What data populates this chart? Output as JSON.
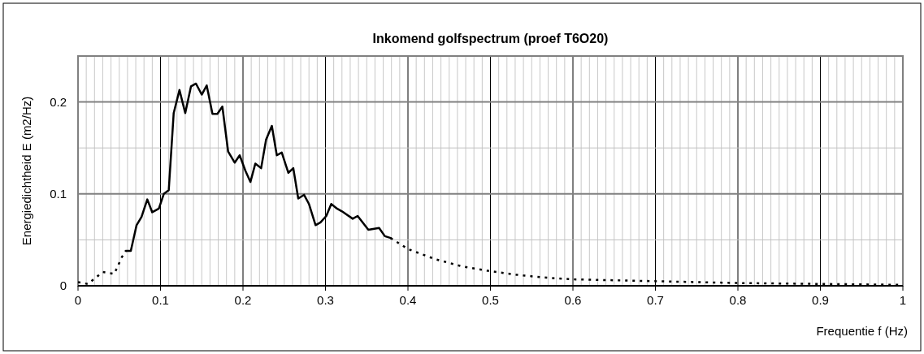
{
  "chart_data": {
    "type": "line",
    "title": "Inkomend golfspectrum (proef T6O20)",
    "xlabel": "Frequentie f (Hz)",
    "ylabel": "Energiedichtheid E (m2/Hz)",
    "xlim": [
      0,
      1
    ],
    "ylim": [
      0,
      0.25
    ],
    "xticks": [
      0,
      {
        "value": 0.01,
        "label": null
      },
      {
        "value": 0.02,
        "label": null
      },
      {
        "value": 0.03,
        "label": null
      },
      {
        "value": 0.04,
        "label": null
      },
      {
        "value": 0.05,
        "label": null
      },
      {
        "value": 0.06,
        "label": null
      },
      {
        "value": 0.07,
        "label": null
      },
      {
        "value": 0.08,
        "label": null
      },
      {
        "value": 0.09,
        "label": null
      },
      0.1,
      {
        "value": 0.11,
        "label": null
      },
      {
        "value": 0.12,
        "label": null
      },
      {
        "value": 0.13,
        "label": null
      },
      {
        "value": 0.14,
        "label": null
      },
      {
        "value": 0.15,
        "label": null
      },
      {
        "value": 0.16,
        "label": null
      },
      {
        "value": 0.17,
        "label": null
      },
      {
        "value": 0.18,
        "label": null
      },
      {
        "value": 0.19,
        "label": null
      },
      0.2,
      {
        "value": 0.21,
        "label": null
      },
      {
        "value": 0.22,
        "label": null
      },
      {
        "value": 0.23,
        "label": null
      },
      {
        "value": 0.24,
        "label": null
      },
      {
        "value": 0.25,
        "label": null
      },
      {
        "value": 0.26,
        "label": null
      },
      {
        "value": 0.27,
        "label": null
      },
      {
        "value": 0.28,
        "label": null
      },
      {
        "value": 0.29,
        "label": null
      },
      0.3,
      {
        "value": 0.31,
        "label": null
      },
      {
        "value": 0.32,
        "label": null
      },
      {
        "value": 0.33,
        "label": null
      },
      {
        "value": 0.34,
        "label": null
      },
      {
        "value": 0.35,
        "label": null
      },
      {
        "value": 0.36,
        "label": null
      },
      {
        "value": 0.37,
        "label": null
      },
      {
        "value": 0.38,
        "label": null
      },
      {
        "value": 0.39,
        "label": null
      },
      0.4,
      {
        "value": 0.41,
        "label": null
      },
      {
        "value": 0.42,
        "label": null
      },
      {
        "value": 0.43,
        "label": null
      },
      {
        "value": 0.44,
        "label": null
      },
      {
        "value": 0.45,
        "label": null
      },
      {
        "value": 0.46,
        "label": null
      },
      {
        "value": 0.47,
        "label": null
      },
      {
        "value": 0.48,
        "label": null
      },
      {
        "value": 0.49,
        "label": null
      },
      0.5,
      {
        "value": 0.51,
        "label": null
      },
      {
        "value": 0.52,
        "label": null
      },
      {
        "value": 0.53,
        "label": null
      },
      {
        "value": 0.54,
        "label": null
      },
      {
        "value": 0.55,
        "label": null
      },
      {
        "value": 0.56,
        "label": null
      },
      {
        "value": 0.57,
        "label": null
      },
      {
        "value": 0.58,
        "label": null
      },
      {
        "value": 0.59,
        "label": null
      },
      0.6,
      {
        "value": 0.61,
        "label": null
      },
      {
        "value": 0.62,
        "label": null
      },
      {
        "value": 0.63,
        "label": null
      },
      {
        "value": 0.64,
        "label": null
      },
      {
        "value": 0.65,
        "label": null
      },
      {
        "value": 0.66,
        "label": null
      },
      {
        "value": 0.67,
        "label": null
      },
      {
        "value": 0.68,
        "label": null
      },
      {
        "value": 0.69,
        "label": null
      },
      0.7,
      {
        "value": 0.71,
        "label": null
      },
      {
        "value": 0.72,
        "label": null
      },
      {
        "value": 0.73,
        "label": null
      },
      {
        "value": 0.74,
        "label": null
      },
      {
        "value": 0.75,
        "label": null
      },
      {
        "value": 0.76,
        "label": null
      },
      {
        "value": 0.77,
        "label": null
      },
      {
        "value": 0.78,
        "label": null
      },
      {
        "value": 0.79,
        "label": null
      },
      0.8,
      {
        "value": 0.81,
        "label": null
      },
      {
        "value": 0.82,
        "label": null
      },
      {
        "value": 0.83,
        "label": null
      },
      {
        "value": 0.84,
        "label": null
      },
      {
        "value": 0.85,
        "label": null
      },
      {
        "value": 0.86,
        "label": null
      },
      {
        "value": 0.87,
        "label": null
      },
      {
        "value": 0.88,
        "label": null
      },
      {
        "value": 0.89,
        "label": null
      },
      0.9,
      {
        "value": 0.91,
        "label": null
      },
      {
        "value": 0.92,
        "label": null
      },
      {
        "value": 0.93,
        "label": null
      },
      {
        "value": 0.94,
        "label": null
      },
      {
        "value": 0.95,
        "label": null
      },
      {
        "value": 0.96,
        "label": null
      },
      {
        "value": 0.97,
        "label": null
      },
      {
        "value": 0.98,
        "label": null
      },
      {
        "value": 0.99,
        "label": null
      },
      1
    ],
    "yticks": [
      0,
      {
        "value": 0.05,
        "label": null
      },
      0.1,
      {
        "value": 0.15,
        "label": null
      },
      0.2,
      {
        "value": 0.25,
        "label": null
      }
    ],
    "grid": true,
    "marker": "none",
    "series": [
      {
        "color": "#000000",
        "line_style": "solid",
        "x": [
          0.058,
          0.064,
          0.071,
          0.077,
          0.084,
          0.09,
          0.098,
          0.104,
          0.11,
          0.116,
          0.123,
          0.13,
          0.137,
          0.143,
          0.15,
          0.156,
          0.163,
          0.169,
          0.175,
          0.182,
          0.19,
          0.196,
          0.203,
          0.209,
          0.215,
          0.222,
          0.228,
          0.235,
          0.241,
          0.247,
          0.255,
          0.261,
          0.267,
          0.274,
          0.28,
          0.288,
          0.294,
          0.301,
          0.307,
          0.314,
          0.32,
          0.333,
          0.339,
          0.352,
          0.365,
          0.372,
          0.379
        ],
        "values": [
          0.038,
          0.038,
          0.066,
          0.075,
          0.094,
          0.08,
          0.084,
          0.1,
          0.104,
          0.188,
          0.213,
          0.188,
          0.217,
          0.22,
          0.208,
          0.218,
          0.187,
          0.187,
          0.195,
          0.146,
          0.134,
          0.142,
          0.125,
          0.113,
          0.133,
          0.128,
          0.159,
          0.174,
          0.142,
          0.145,
          0.123,
          0.128,
          0.095,
          0.099,
          0.089,
          0.066,
          0.069,
          0.076,
          0.089,
          0.084,
          0.081,
          0.073,
          0.076,
          0.061,
          0.063,
          0.054,
          0.052
        ]
      },
      {
        "color": "#000000",
        "line_style": "dotted",
        "x": [
          0,
          0.012,
          0.03,
          0.044,
          0.053,
          0.058,
          0.2,
          0.379,
          0.4,
          0.433,
          0.466,
          0.499,
          0.532,
          0.565,
          0.6,
          0.7,
          0.8,
          0.9,
          1
        ],
        "values": [
          0.004,
          0.002,
          0.015,
          0.013,
          0.031,
          0.038,
          null,
          0.052,
          0.04,
          0.029,
          0.021,
          0.016,
          0.012,
          0.009,
          0.007,
          0.005,
          0.003,
          0.002,
          0.001
        ]
      }
    ]
  }
}
